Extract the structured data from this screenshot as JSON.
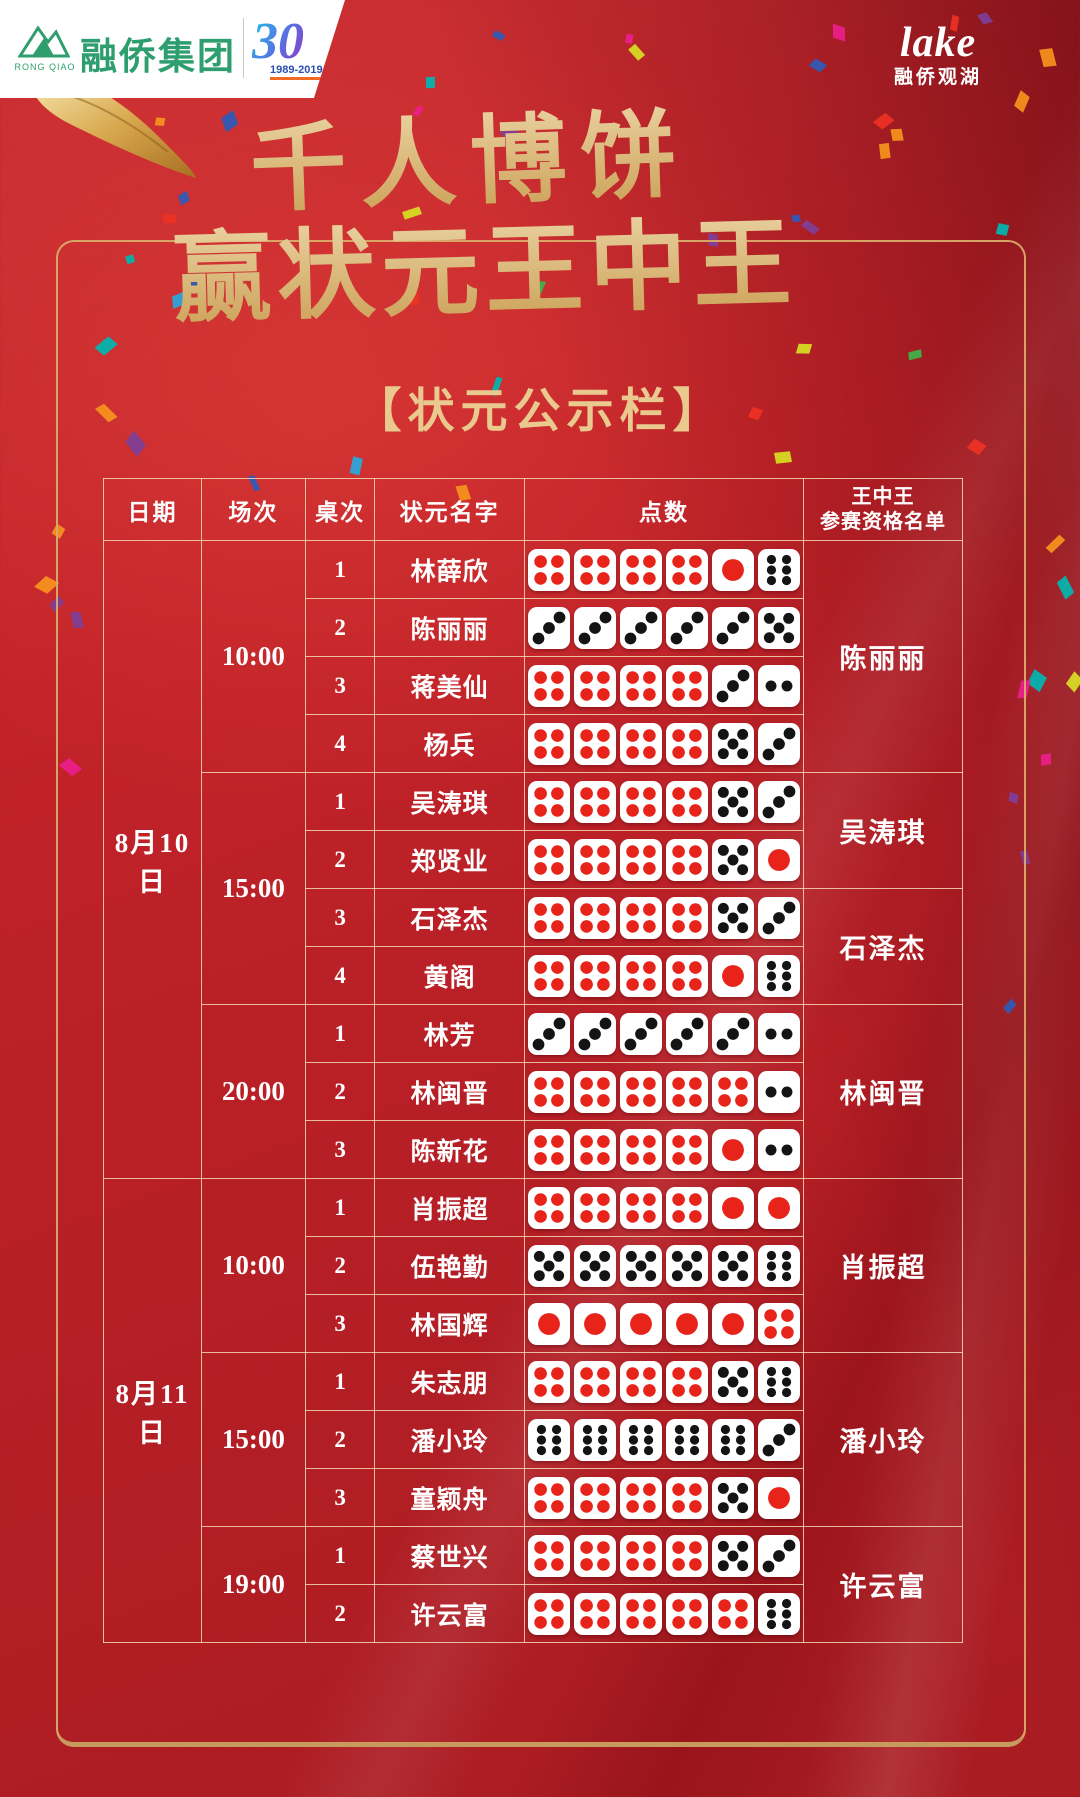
{
  "brand_left": {
    "logo_icon": "rongqiao-mountain",
    "company": "融侨集团",
    "company_en": "RONG QIAO",
    "anniversary_number": "30",
    "anniversary_years": "1989-2019"
  },
  "brand_right": {
    "logo_script": "lake",
    "name": "融侨观湖"
  },
  "title": {
    "line1": "千人博饼",
    "line2": "赢状元王中王"
  },
  "subtitle": "【状元公示栏】",
  "colors": {
    "background_red": "#bb2026",
    "deep_red": "#7e1016",
    "frame_gold": "#d8ac6a",
    "title_gold": "#d9b87c",
    "table_border": "#f3d8b2",
    "brand_green": "#2f9e6e",
    "die_red_pip": "#e8231a",
    "die_black_pip": "#141414",
    "confetti_palette": [
      "#29a8dd",
      "#3cb54a",
      "#ec1e8c",
      "#f7941d",
      "#7f3f98",
      "#00b7b2",
      "#ee3124",
      "#2e5bba",
      "#d7df23"
    ]
  },
  "table": {
    "header": {
      "date": "日期",
      "session": "场次",
      "table_no": "桌次",
      "name": "状元名字",
      "points": "点数",
      "king_line1": "王中王",
      "king_line2": "参赛资格名单"
    },
    "rows": [
      {
        "date": {
          "text": "8月10日",
          "span": 11
        },
        "session": {
          "text": "10:00",
          "span": 4
        },
        "table_no": "1",
        "name": "林薛欣",
        "dice": [
          4,
          4,
          4,
          4,
          1,
          6
        ],
        "king": {
          "text": "陈丽丽",
          "span": 4
        }
      },
      {
        "table_no": "2",
        "name": "陈丽丽",
        "dice": [
          3,
          3,
          3,
          3,
          3,
          5
        ]
      },
      {
        "table_no": "3",
        "name": "蒋美仙",
        "dice": [
          4,
          4,
          4,
          4,
          3,
          2
        ]
      },
      {
        "table_no": "4",
        "name": "杨兵",
        "dice": [
          4,
          4,
          4,
          4,
          5,
          3
        ]
      },
      {
        "session": {
          "text": "15:00",
          "span": 4
        },
        "table_no": "1",
        "name": "吴涛琪",
        "dice": [
          4,
          4,
          4,
          4,
          5,
          3
        ],
        "king": {
          "text": "吴涛琪",
          "span": 2
        }
      },
      {
        "table_no": "2",
        "name": "郑贤业",
        "dice": [
          4,
          4,
          4,
          4,
          5,
          1
        ]
      },
      {
        "table_no": "3",
        "name": "石泽杰",
        "dice": [
          4,
          4,
          4,
          4,
          5,
          3
        ],
        "king": {
          "text": "石泽杰",
          "span": 2
        }
      },
      {
        "table_no": "4",
        "name": "黄阁",
        "dice": [
          4,
          4,
          4,
          4,
          1,
          6
        ]
      },
      {
        "session": {
          "text": "20:00",
          "span": 3
        },
        "table_no": "1",
        "name": "林芳",
        "dice": [
          3,
          3,
          3,
          3,
          3,
          2
        ],
        "king": {
          "text": "林闽晋",
          "span": 3
        }
      },
      {
        "table_no": "2",
        "name": "林闽晋",
        "dice": [
          4,
          4,
          4,
          4,
          4,
          2
        ]
      },
      {
        "table_no": "3",
        "name": "陈新花",
        "dice": [
          4,
          4,
          4,
          4,
          1,
          2
        ]
      },
      {
        "date": {
          "text": "8月11日",
          "span": 8
        },
        "session": {
          "text": "10:00",
          "span": 3
        },
        "table_no": "1",
        "name": "肖振超",
        "dice": [
          4,
          4,
          4,
          4,
          1,
          1
        ],
        "king": {
          "text": "肖振超",
          "span": 3
        }
      },
      {
        "table_no": "2",
        "name": "伍艳勤",
        "dice": [
          5,
          5,
          5,
          5,
          5,
          6
        ]
      },
      {
        "table_no": "3",
        "name": "林国辉",
        "dice": [
          1,
          1,
          1,
          1,
          1,
          4
        ]
      },
      {
        "session": {
          "text": "15:00",
          "span": 3
        },
        "table_no": "1",
        "name": "朱志朋",
        "dice": [
          4,
          4,
          4,
          4,
          5,
          6
        ],
        "king": {
          "text": "潘小玲",
          "span": 3
        }
      },
      {
        "table_no": "2",
        "name": "潘小玲",
        "dice": [
          6,
          6,
          6,
          6,
          6,
          3
        ]
      },
      {
        "table_no": "3",
        "name": "童颖舟",
        "dice": [
          4,
          4,
          4,
          4,
          5,
          1
        ]
      },
      {
        "session": {
          "text": "19:00",
          "span": 2
        },
        "table_no": "1",
        "name": "蔡世兴",
        "dice": [
          4,
          4,
          4,
          4,
          5,
          3
        ],
        "king": {
          "text": "许云富",
          "span": 2
        }
      },
      {
        "table_no": "2",
        "name": "许云富",
        "dice": [
          4,
          4,
          4,
          4,
          4,
          6
        ]
      }
    ]
  }
}
